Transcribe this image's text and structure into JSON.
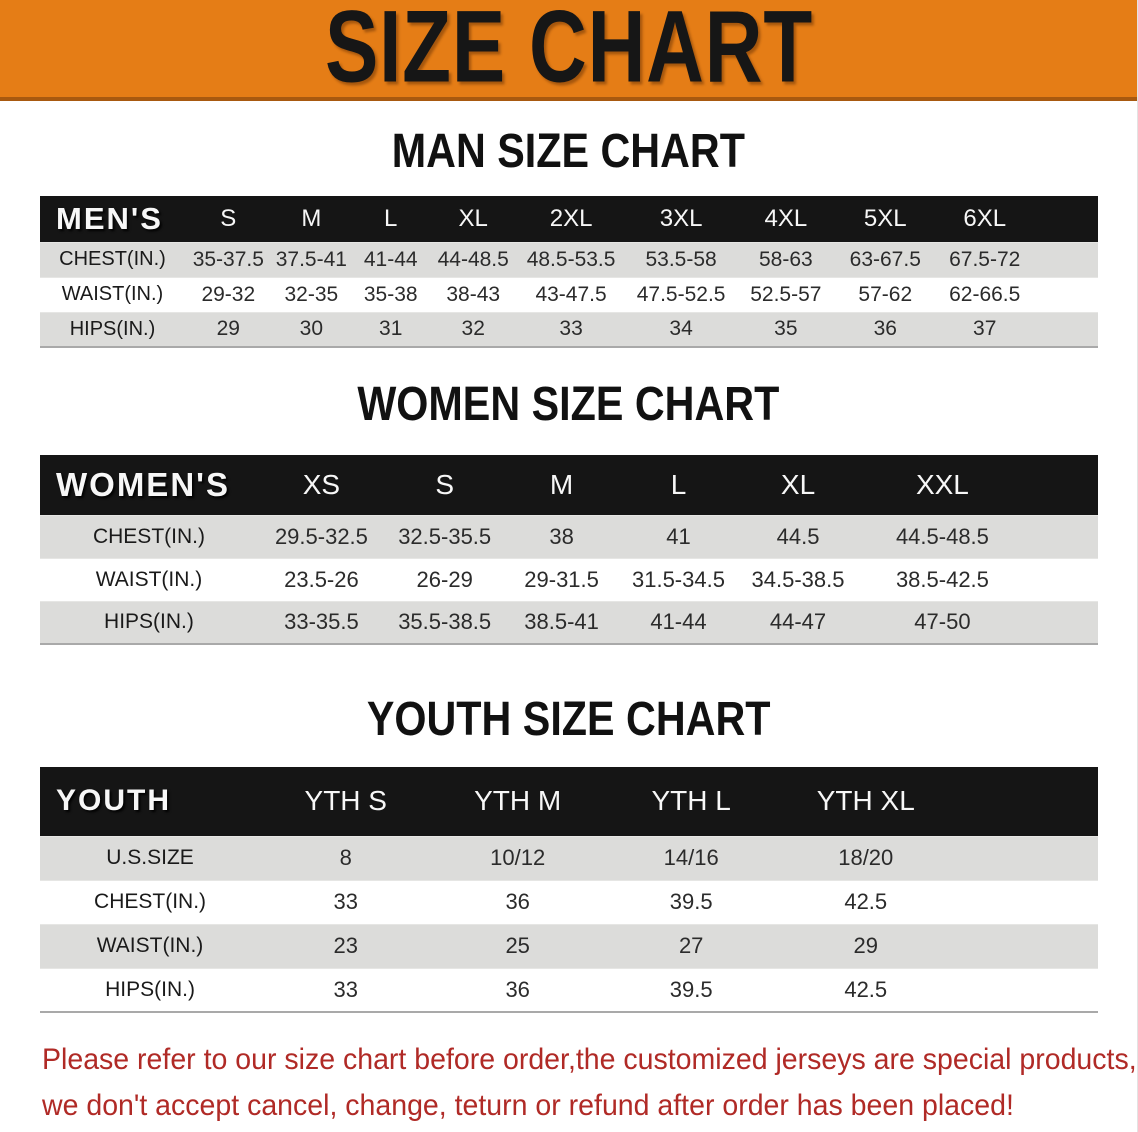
{
  "banner": {
    "title": "SIZE CHART"
  },
  "colors": {
    "banner_bg": "#e57d16",
    "banner_border": "#a8590f",
    "header_bar": "#151515",
    "row_gray": "#dcdcda",
    "disclaimer_red": "#b02a26"
  },
  "sections": [
    {
      "heading": "MAN SIZE CHART",
      "table": {
        "label": "MEN'S",
        "columns": [
          "S",
          "M",
          "L",
          "XL",
          "2XL",
          "3XL",
          "4XL",
          "5XL",
          "6XL"
        ],
        "rows": [
          {
            "label": "CHEST(IN.)",
            "values": [
              "35-37.5",
              "37.5-41",
              "41-44",
              "44-48.5",
              "48.5-53.5",
              "53.5-58",
              "58-63",
              "63-67.5",
              "67.5-72"
            ]
          },
          {
            "label": "WAIST(IN.)",
            "values": [
              "29-32",
              "32-35",
              "35-38",
              "38-43",
              "43-47.5",
              "47.5-52.5",
              "52.5-57",
              "57-62",
              "62-66.5"
            ]
          },
          {
            "label": "HIPS(IN.)",
            "values": [
              "29",
              "30",
              "31",
              "32",
              "33",
              "34",
              "35",
              "36",
              "37"
            ]
          }
        ]
      }
    },
    {
      "heading": "WOMEN SIZE CHART",
      "table": {
        "label": "WOMEN'S",
        "columns": [
          "XS",
          "S",
          "M",
          "L",
          "XL",
          "XXL"
        ],
        "rows": [
          {
            "label": "CHEST(IN.)",
            "values": [
              "29.5-32.5",
              "32.5-35.5",
              "38",
              "41",
              "44.5",
              "44.5-48.5"
            ]
          },
          {
            "label": "WAIST(IN.)",
            "values": [
              "23.5-26",
              "26-29",
              "29-31.5",
              "31.5-34.5",
              "34.5-38.5",
              "38.5-42.5"
            ]
          },
          {
            "label": "HIPS(IN.)",
            "values": [
              "33-35.5",
              "35.5-38.5",
              "38.5-41",
              "41-44",
              "44-47",
              "47-50"
            ]
          }
        ]
      }
    },
    {
      "heading": "YOUTH SIZE CHART",
      "table": {
        "label": "YOUTH",
        "columns": [
          "YTH S",
          "YTH M",
          "YTH L",
          "YTH XL"
        ],
        "rows": [
          {
            "label": "U.S.SIZE",
            "values": [
              "8",
              "10/12",
              "14/16",
              "18/20"
            ]
          },
          {
            "label": "CHEST(IN.)",
            "values": [
              "33",
              "36",
              "39.5",
              "42.5"
            ]
          },
          {
            "label": "WAIST(IN.)",
            "values": [
              "23",
              "25",
              "27",
              "29"
            ]
          },
          {
            "label": "HIPS(IN.)",
            "values": [
              "33",
              "36",
              "39.5",
              "42.5"
            ]
          }
        ]
      }
    }
  ],
  "disclaimer": {
    "line1": "Please refer to our size chart before order,the customized jerseys are special products,",
    "line2": "we don't accept cancel, change, teturn or refund after order has been placed!"
  }
}
